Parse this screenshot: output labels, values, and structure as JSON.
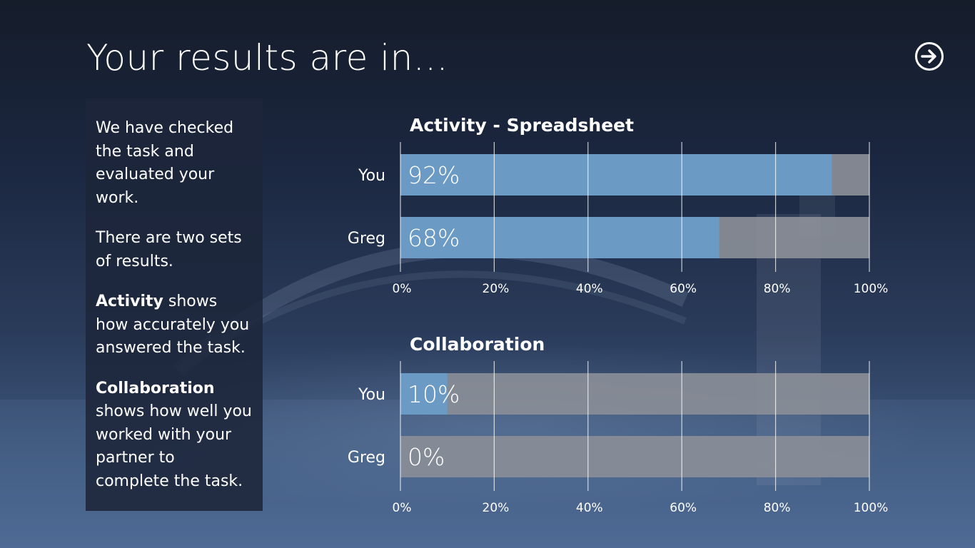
{
  "page": {
    "title": "Your results are in...",
    "next_icon": "arrow-right-circle-icon"
  },
  "info": {
    "p1": "We have checked the task and evaluated your work.",
    "p2": "There are two sets of results.",
    "p3_bold": "Activity",
    "p3_rest": " shows how accurately you answered the task.",
    "p4_bold": "Collaboration",
    "p4_rest": " shows how well you worked with your partner to complete the task."
  },
  "chart_data": [
    {
      "type": "bar",
      "orientation": "horizontal",
      "title": "Activity - Spreadsheet",
      "categories": [
        "You",
        "Greg"
      ],
      "values": [
        92,
        68
      ],
      "value_labels": [
        "92%",
        "68%"
      ],
      "xlim": [
        0,
        100
      ],
      "ticks": [
        "0%",
        "20%",
        "40%",
        "60%",
        "80%",
        "100%"
      ],
      "grid": true,
      "colors": {
        "fill": "#6b9ac4",
        "remainder": "#8a8e97"
      }
    },
    {
      "type": "bar",
      "orientation": "horizontal",
      "title": "Collaboration",
      "categories": [
        "You",
        "Greg"
      ],
      "values": [
        10,
        0
      ],
      "value_labels": [
        "10%",
        "0%"
      ],
      "xlim": [
        0,
        100
      ],
      "ticks": [
        "0%",
        "20%",
        "40%",
        "60%",
        "80%",
        "100%"
      ],
      "grid": true,
      "colors": {
        "fill": "#6b9ac4",
        "remainder": "#8a8e97"
      }
    }
  ]
}
